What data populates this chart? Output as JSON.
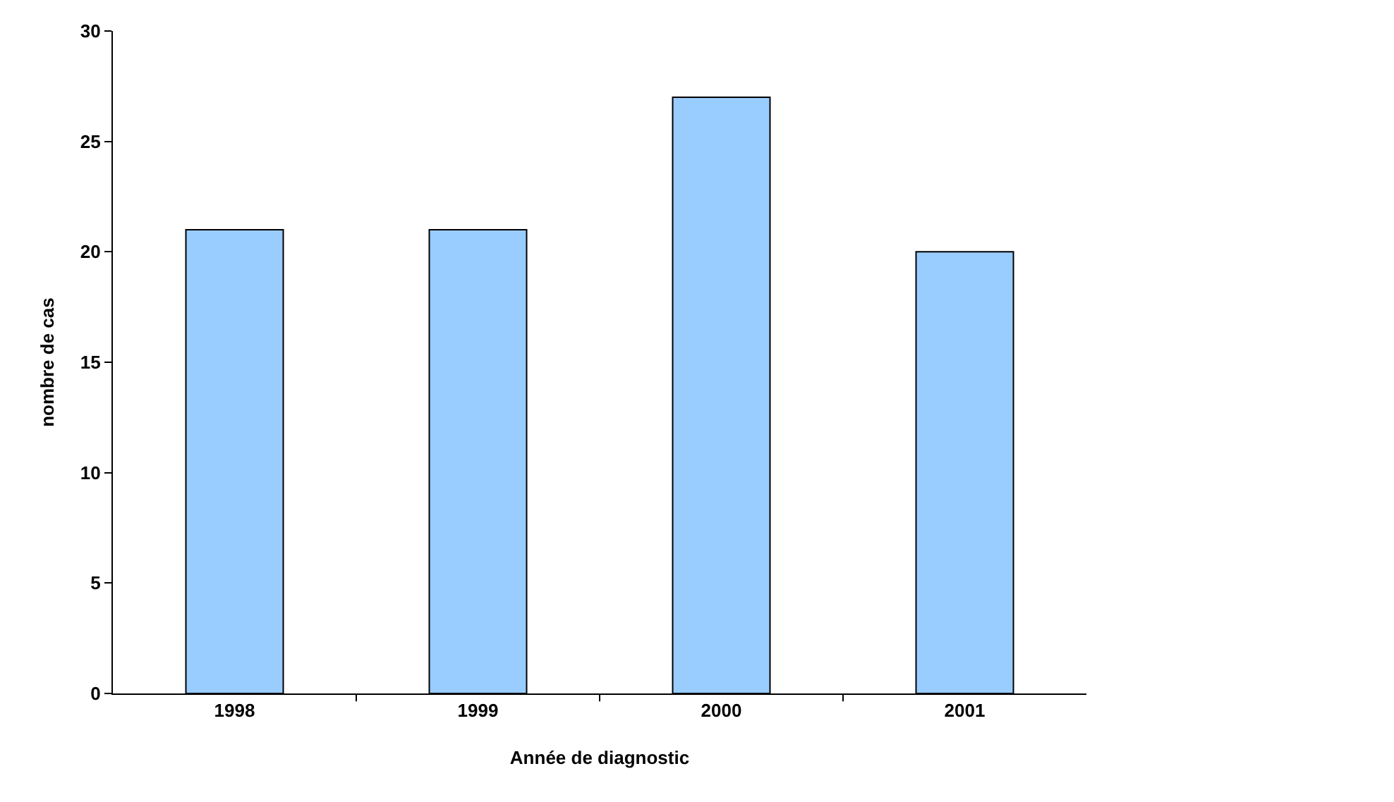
{
  "chart_data": {
    "type": "bar",
    "xlabel": "Année de diagnostic",
    "ylabel": "nombre de cas",
    "categories": [
      "1998",
      "1999",
      "2000",
      "2001"
    ],
    "values": [
      21,
      21,
      27,
      20
    ],
    "color": "#99ccff",
    "ylim": [
      0,
      30
    ],
    "yticks": [
      0,
      5,
      10,
      15,
      20,
      25,
      30
    ]
  }
}
